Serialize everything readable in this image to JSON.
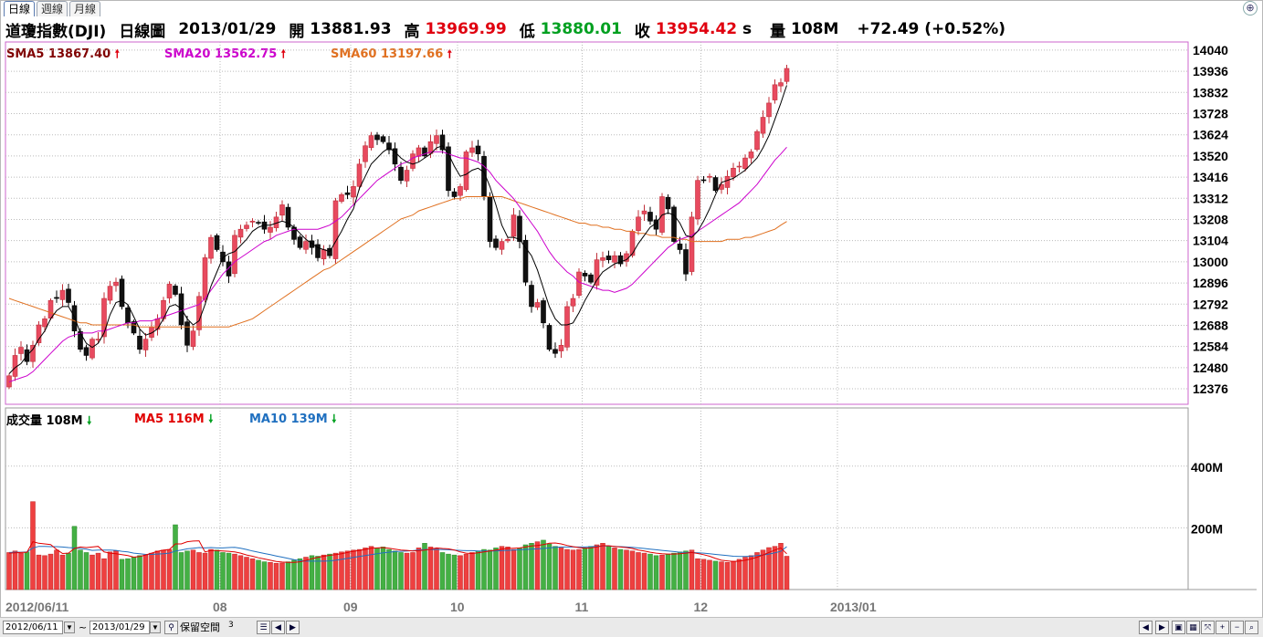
{
  "tabs": [
    {
      "label": "日線",
      "active": true
    },
    {
      "label": "週線",
      "active": false
    },
    {
      "label": "月線",
      "active": false
    }
  ],
  "header": {
    "name": "道瓊指數(DJI)",
    "period": "日線圖",
    "date": "2013/01/29",
    "open_label": "開",
    "open": "13881.93",
    "high_label": "高",
    "high": "13969.99",
    "low_label": "低",
    "low": "13880.01",
    "close_label": "收",
    "close": "13954.42",
    "close_suffix": "s",
    "volume_label": "量",
    "volume": "108M",
    "change": "+72.49 (+0.52%)"
  },
  "indicators": {
    "sma5": "SMA5 13867.40",
    "sma20": "SMA20 13562.75",
    "sma60": "SMA60 13197.66",
    "vol": "成交量 108M",
    "vol_ma5": "MA5 116M",
    "vol_ma10": "MA10 139M"
  },
  "colors": {
    "up": "#e84a5f",
    "down": "#111111",
    "sma5": "#000000",
    "sma20": "#cc00cc",
    "sma60": "#e07020",
    "vol_up": "#ee4040",
    "vol_down": "#44b044",
    "vol_ma5": "#e00000",
    "vol_ma10": "#2070c0",
    "frame": "#cc66cc"
  },
  "bottom": {
    "start_date": "2012/06/11",
    "tilde": "~",
    "end_date": "2013/01/29",
    "keep_space_label": "保留空間",
    "keep_space_value": "3"
  },
  "chart_data": [
    {
      "type": "candlestick",
      "title": "道瓊指數(DJI) 日線圖",
      "ylim": [
        12300,
        14080
      ],
      "yticks": [
        14040,
        13936,
        13832,
        13728,
        13624,
        13520,
        13416,
        13312,
        13208,
        13104,
        13000,
        12896,
        12792,
        12688,
        12584,
        12480,
        12376
      ],
      "x_tick_labels": [
        "2012/06/11",
        "08",
        "09",
        "10",
        "11",
        "12",
        "2013/01"
      ],
      "x_tick_index": [
        0,
        36,
        58,
        76,
        97,
        117,
        140
      ],
      "series": [
        {
          "name": "OHLC",
          "close": [
            12440,
            12540,
            12580,
            12510,
            12590,
            12690,
            12720,
            12810,
            12820,
            12860,
            12800,
            12660,
            12570,
            12540,
            12620,
            12620,
            12820,
            12880,
            12900,
            12780,
            12700,
            12650,
            12570,
            12620,
            12680,
            12720,
            12810,
            12890,
            12840,
            12690,
            12590,
            12660,
            12830,
            13020,
            13120,
            13060,
            13000,
            12930,
            13130,
            13160,
            13180,
            13200,
            13190,
            13160,
            13170,
            13220,
            13280,
            13170,
            13110,
            13070,
            13100,
            13070,
            13020,
            13060,
            13030,
            13300,
            13330,
            13330,
            13370,
            13480,
            13570,
            13620,
            13600,
            13590,
            13550,
            13480,
            13400,
            13450,
            13530,
            13560,
            13520,
            13590,
            13620,
            13550,
            13350,
            13320,
            13370,
            13540,
            13560,
            13530,
            13320,
            13100,
            13070,
            13100,
            13110,
            13230,
            13100,
            12900,
            12780,
            12800,
            12700,
            12570,
            12550,
            12590,
            12780,
            12820,
            12950,
            12930,
            12900,
            13010,
            13020,
            13010,
            13030,
            12990,
            13040,
            13150,
            13220,
            13250,
            13200,
            13160,
            13320,
            13260,
            13100,
            13060,
            12940,
            13220,
            13400,
            13400,
            13420,
            13350,
            13380,
            13420,
            13460,
            13470,
            13510,
            13540,
            13640,
            13710,
            13780,
            13870,
            13880,
            13950
          ]
        },
        {
          "name": "SMA5",
          "values": [
            12450,
            12480,
            12500,
            12540,
            12570,
            12620,
            12660,
            12720,
            12760,
            12780,
            12780,
            12730,
            12650,
            12600,
            12580,
            12600,
            12650,
            12740,
            12800,
            12810,
            12790,
            12730,
            12670,
            12640,
            12650,
            12670,
            12720,
            12780,
            12790,
            12770,
            12720,
            12690,
            12710,
            12790,
            12880,
            12950,
            13020,
            13040,
            13050,
            13080,
            13110,
            13150,
            13170,
            13180,
            13180,
            13190,
            13200,
            13190,
            13170,
            13140,
            13110,
            13090,
            13070,
            13060,
            13050,
            13100,
            13150,
            13210,
            13260,
            13360,
            13420,
            13480,
            13510,
            13540,
            13560,
            13540,
            13510,
            13490,
            13480,
            13490,
            13510,
            13530,
            13560,
            13570,
            13530,
            13470,
            13420,
            13430,
            13450,
            13460,
            13440,
            13370,
            13280,
            13180,
            13120,
            13120,
            13110,
            13070,
            13030,
            12960,
            12870,
            12780,
            12720,
            12690,
            12690,
            12700,
            12750,
            12810,
            12860,
            12910,
            12950,
            12970,
            12990,
            13000,
            13010,
            13040,
            13090,
            13130,
            13170,
            13190,
            13230,
            13240,
            13230,
            13190,
            13130,
            13120,
            13150,
            13200,
            13260,
            13330,
            13390,
            13400,
            13410,
            13430,
            13450,
            13480,
            13510,
            13560,
            13620,
            13700,
            13780,
            13867
          ]
        },
        {
          "name": "SMA20",
          "values": [
            12410,
            12420,
            12430,
            12440,
            12460,
            12490,
            12520,
            12550,
            12580,
            12610,
            12630,
            12640,
            12650,
            12650,
            12650,
            12660,
            12660,
            12670,
            12680,
            12690,
            12700,
            12700,
            12710,
            12710,
            12710,
            12720,
            12730,
            12740,
            12750,
            12760,
            12770,
            12780,
            12790,
            12820,
            12860,
            12900,
            12940,
            12970,
            13000,
            13020,
            13040,
            13060,
            13080,
            13100,
            13110,
            13130,
            13140,
            13150,
            13160,
            13160,
            13160,
            13160,
            13160,
            13170,
            13180,
            13200,
            13220,
            13250,
            13280,
            13310,
            13340,
            13370,
            13400,
            13420,
            13440,
            13460,
            13480,
            13490,
            13510,
            13520,
            13530,
            13540,
            13540,
            13540,
            13530,
            13520,
            13510,
            13510,
            13500,
            13490,
            13470,
            13440,
            13400,
            13370,
            13340,
            13310,
            13270,
            13230,
            13190,
            13150,
            13100,
            13050,
            13010,
            12980,
            12950,
            12930,
            12900,
            12890,
            12880,
            12870,
            12860,
            12860,
            12850,
            12860,
            12870,
            12890,
            12920,
            12950,
            12980,
            13010,
            13040,
            13070,
            13090,
            13110,
            13120,
            13130,
            13150,
            13170,
            13190,
            13210,
            13230,
            13250,
            13270,
            13290,
            13320,
            13350,
            13380,
            13420,
            13460,
            13500,
            13530,
            13563
          ]
        },
        {
          "name": "SMA60",
          "values": [
            12820,
            12810,
            12800,
            12790,
            12780,
            12770,
            12760,
            12750,
            12740,
            12730,
            12720,
            12710,
            12700,
            12700,
            12690,
            12690,
            12690,
            12690,
            12690,
            12690,
            12690,
            12690,
            12680,
            12680,
            12680,
            12680,
            12680,
            12680,
            12680,
            12680,
            12680,
            12680,
            12680,
            12680,
            12680,
            12680,
            12680,
            12680,
            12690,
            12700,
            12710,
            12720,
            12740,
            12760,
            12780,
            12800,
            12820,
            12840,
            12860,
            12880,
            12900,
            12920,
            12940,
            12960,
            12970,
            12990,
            13010,
            13030,
            13050,
            13070,
            13090,
            13110,
            13130,
            13150,
            13170,
            13190,
            13210,
            13220,
            13230,
            13250,
            13260,
            13270,
            13280,
            13290,
            13300,
            13310,
            13310,
            13320,
            13320,
            13320,
            13320,
            13320,
            13320,
            13320,
            13310,
            13300,
            13290,
            13280,
            13270,
            13260,
            13250,
            13240,
            13230,
            13220,
            13210,
            13200,
            13190,
            13190,
            13180,
            13180,
            13170,
            13170,
            13160,
            13160,
            13150,
            13150,
            13140,
            13140,
            13130,
            13130,
            13120,
            13120,
            13120,
            13110,
            13110,
            13100,
            13100,
            13100,
            13100,
            13100,
            13100,
            13110,
            13110,
            13110,
            13120,
            13120,
            13130,
            13140,
            13150,
            13160,
            13180,
            13198
          ]
        }
      ]
    },
    {
      "type": "bar",
      "title": "成交量",
      "ylim": [
        0,
        500
      ],
      "unit": "M",
      "yticks": [
        400,
        200
      ],
      "series": [
        {
          "name": "成交量",
          "values": [
            120,
            125,
            118,
            122,
            285,
            112,
            110,
            115,
            128,
            112,
            118,
            205,
            128,
            120,
            112,
            118,
            100,
            122,
            125,
            98,
            100,
            105,
            110,
            112,
            118,
            125,
            128,
            130,
            210,
            120,
            125,
            128,
            120,
            118,
            130,
            128,
            120,
            118,
            115,
            110,
            105,
            100,
            95,
            90,
            88,
            85,
            86,
            90,
            95,
            100,
            105,
            110,
            108,
            112,
            115,
            118,
            122,
            125,
            128,
            130,
            135,
            140,
            135,
            138,
            130,
            125,
            120,
            118,
            120,
            135,
            150,
            138,
            132,
            120,
            115,
            112,
            110,
            115,
            120,
            125,
            130,
            128,
            135,
            140,
            138,
            130,
            135,
            145,
            150,
            155,
            160,
            148,
            140,
            135,
            130,
            128,
            130,
            135,
            140,
            145,
            150,
            140,
            135,
            130,
            128,
            125,
            120,
            118,
            115,
            110,
            112,
            115,
            118,
            122,
            125,
            128,
            100,
            98,
            95,
            92,
            90,
            88,
            92,
            98,
            105,
            110,
            120,
            128,
            136,
            140,
            150,
            108
          ]
        },
        {
          "name": "MA5",
          "values": [
            118,
            119,
            120,
            121,
            155,
            150,
            148,
            146,
            130,
            117,
            118,
            133,
            138,
            136,
            138,
            140,
            122,
            118,
            116,
            113,
            110,
            105,
            107,
            112,
            118,
            124,
            128,
            130,
            148,
            148,
            155,
            157,
            158,
            122,
            127,
            126,
            125,
            124,
            122,
            118,
            112,
            108,
            103,
            99,
            95,
            91,
            89,
            88,
            88,
            90,
            94,
            100,
            104,
            108,
            111,
            113,
            116,
            120,
            124,
            127,
            130,
            134,
            135,
            136,
            134,
            131,
            128,
            127,
            125,
            126,
            128,
            131,
            135,
            133,
            132,
            128,
            122,
            118,
            117,
            119,
            122,
            125,
            128,
            131,
            133,
            134,
            135,
            138,
            141,
            143,
            146,
            150,
            151,
            148,
            143,
            139,
            136,
            134,
            135,
            138,
            142,
            142,
            140,
            138,
            136,
            133,
            128,
            125,
            121,
            118,
            116,
            115,
            115,
            116,
            118,
            120,
            117,
            113,
            108,
            101,
            95,
            93,
            91,
            92,
            95,
            99,
            105,
            112,
            120,
            128,
            135,
            116
          ]
        },
        {
          "name": "MA10",
          "values": [
            120,
            121,
            121,
            122,
            135,
            140,
            140,
            139,
            139,
            138,
            136,
            135,
            133,
            131,
            127,
            128,
            128,
            128,
            127,
            124,
            122,
            118,
            116,
            114,
            114,
            115,
            116,
            118,
            125,
            128,
            132,
            134,
            136,
            135,
            136,
            135,
            135,
            136,
            137,
            134,
            130,
            125,
            121,
            117,
            113,
            109,
            105,
            101,
            97,
            94,
            92,
            92,
            92,
            92,
            93,
            95,
            98,
            101,
            104,
            107,
            110,
            113,
            116,
            119,
            121,
            123,
            124,
            125,
            126,
            128,
            130,
            130,
            130,
            130,
            129,
            128,
            127,
            126,
            126,
            125,
            125,
            125,
            125,
            126,
            127,
            128,
            129,
            130,
            131,
            132,
            133,
            135,
            137,
            138,
            138,
            138,
            138,
            138,
            139,
            140,
            141,
            141,
            140,
            139,
            138,
            137,
            135,
            133,
            131,
            129,
            127,
            125,
            123,
            121,
            120,
            120,
            119,
            118,
            116,
            114,
            112,
            110,
            108,
            107,
            107,
            108,
            110,
            112,
            115,
            119,
            124,
            139
          ]
        }
      ]
    }
  ]
}
